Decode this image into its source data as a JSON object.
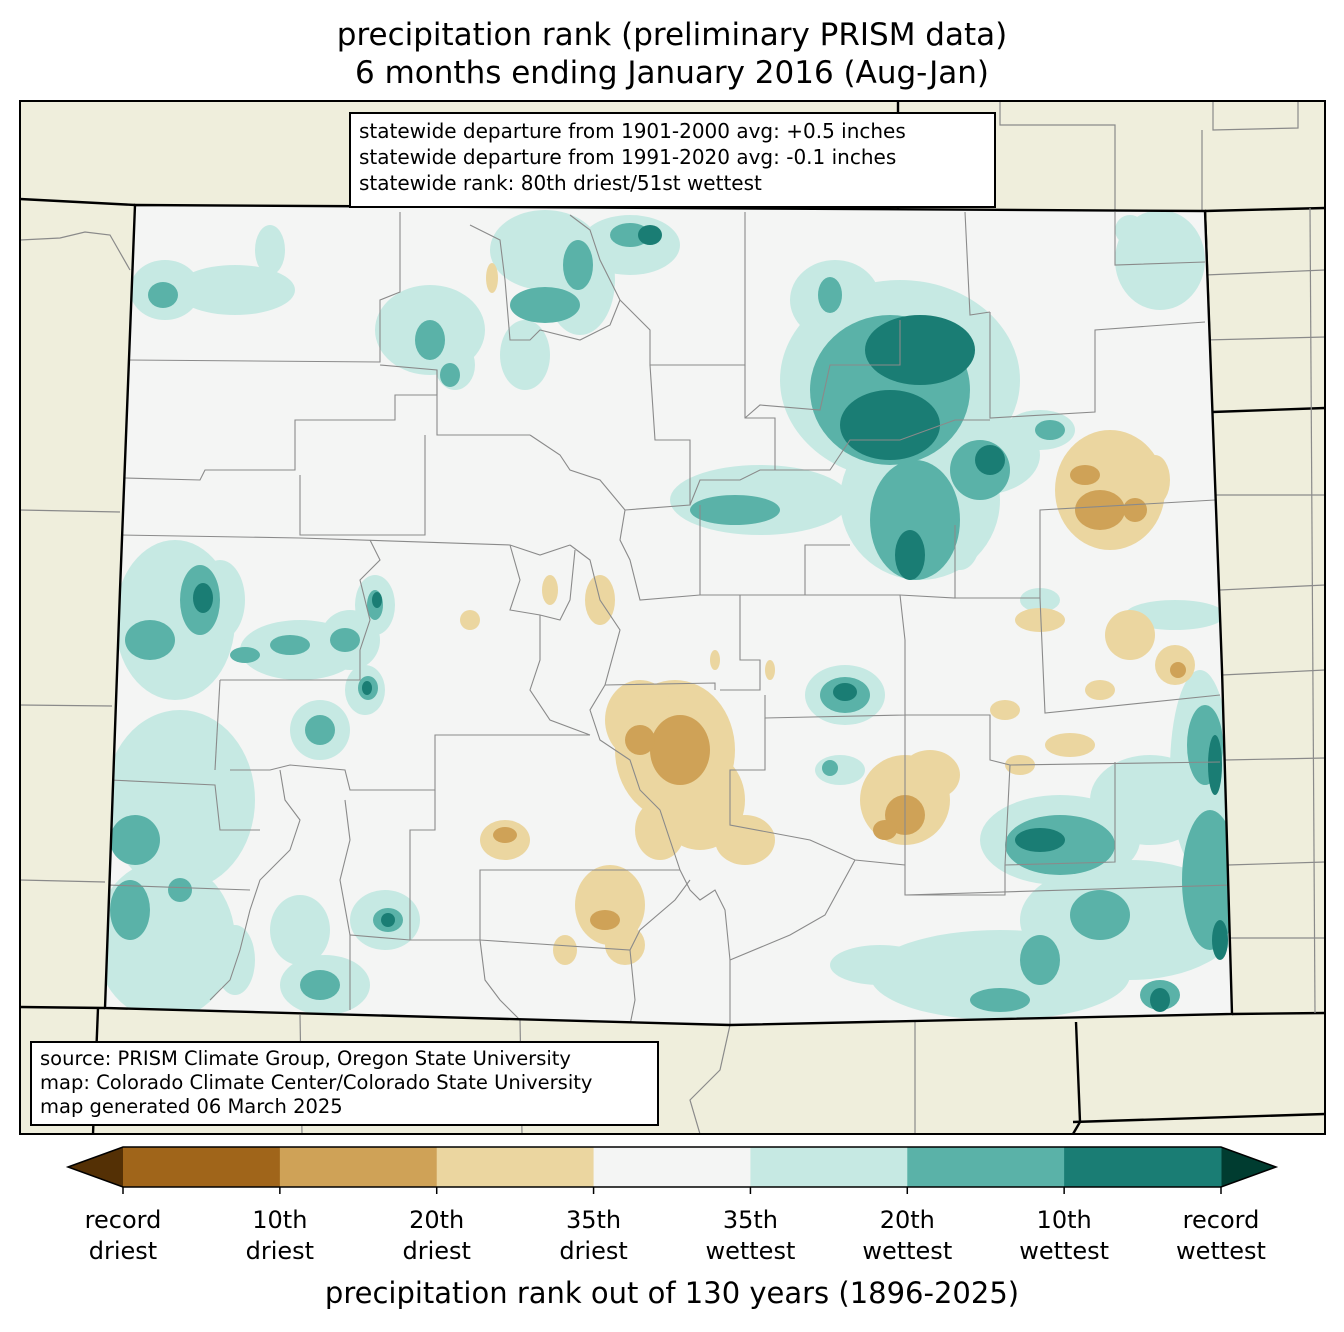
{
  "title": {
    "line1": "precipitation rank (preliminary PRISM data)",
    "line2": "6 months ending January 2016 (Aug-Jan)"
  },
  "stats_box": {
    "line1": "statewide departure from 1901-2000 avg: +0.5 inches",
    "line2": "statewide departure from 1991-2020 avg: -0.1 inches",
    "line3": "statewide rank: 80th driest/51st wettest"
  },
  "source_box": {
    "line1": "source: PRISM Climate Group, Oregon State University",
    "line2": "map: Colorado Climate Center/Colorado State University",
    "line3": "map generated 06 March 2025"
  },
  "colorbar": {
    "title": "precipitation rank out of 130 years (1896-2025)",
    "under_color": "#543005",
    "over_color": "#003c30",
    "bins": [
      "#a0651a",
      "#cfa257",
      "#ebd6a0",
      "#f4f5f4",
      "#c6e9e3",
      "#5ab2a8",
      "#1a7d74"
    ],
    "ticks": [
      {
        "line1": "record",
        "line2": "driest"
      },
      {
        "line1": "10th",
        "line2": "driest"
      },
      {
        "line1": "20th",
        "line2": "driest"
      },
      {
        "line1": "35th",
        "line2": "driest"
      },
      {
        "line1": "35th",
        "line2": "wettest"
      },
      {
        "line1": "20th",
        "line2": "wettest"
      },
      {
        "line1": "10th",
        "line2": "wettest"
      },
      {
        "line1": "record",
        "line2": "wettest"
      }
    ]
  },
  "colors": {
    "background_land": "#efeedc",
    "state_fill": "#f4f5f4",
    "county_lines": "#8a8a8a",
    "state_borders": "#000000"
  }
}
